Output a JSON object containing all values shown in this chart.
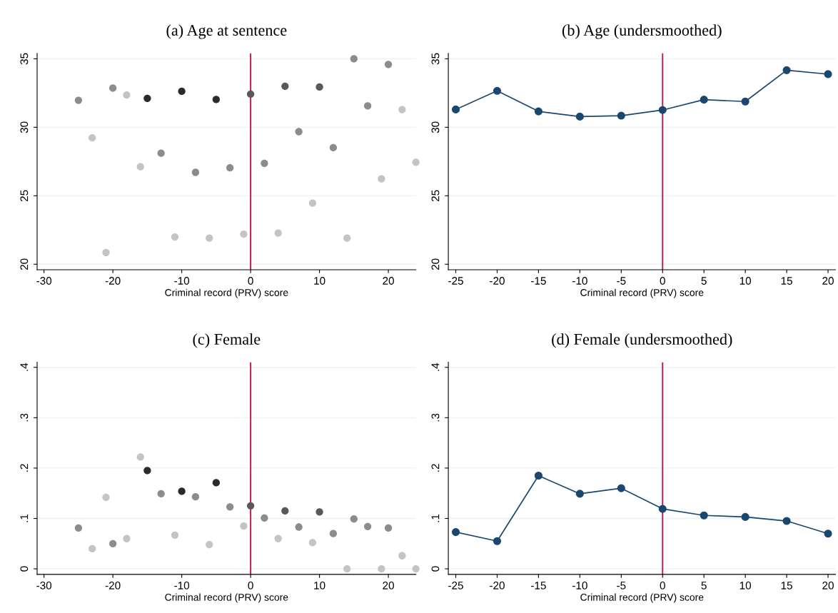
{
  "chart_data": [
    {
      "type": "scatter",
      "title": "(a) Age at sentence",
      "xlabel": "Criminal record (PRV) score",
      "xlim": [
        -31,
        24
      ],
      "xticks": [
        -30,
        -20,
        -10,
        0,
        10,
        20
      ],
      "ylim": [
        19.6,
        35.4
      ],
      "yticks": [
        20,
        25,
        30,
        35
      ],
      "grid": "y",
      "marker": "circle",
      "x": [
        -25,
        -23,
        -21,
        -20,
        -18,
        -16,
        -15,
        -13,
        -11,
        -10,
        -8,
        -6,
        -5,
        -3,
        -1,
        0,
        2,
        4,
        5,
        7,
        9,
        10,
        12,
        14,
        15,
        17,
        19,
        20,
        22,
        24
      ],
      "series": [
        {
          "values": [
            31.97,
            29.23,
            20.86,
            32.86,
            32.36,
            27.12,
            32.11,
            28.11,
            21.99,
            32.63,
            26.71,
            21.91,
            32.03,
            27.04,
            22.2,
            32.42,
            27.37,
            22.28,
            33.0,
            29.68,
            24.46,
            32.94,
            28.51,
            21.91,
            35.0,
            31.56,
            26.24,
            34.59,
            31.29,
            27.45
          ],
          "colors": [
            "#8c8c8c",
            "#c4c4c4",
            "#c4c4c4",
            "#8c8c8c",
            "#c4c4c4",
            "#c4c4c4",
            "#2b2b2b",
            "#8c8c8c",
            "#c4c4c4",
            "#2b2b2b",
            "#8c8c8c",
            "#c4c4c4",
            "#2b2b2b",
            "#8c8c8c",
            "#c4c4c4",
            "#595959",
            "#8c8c8c",
            "#c4c4c4",
            "#595959",
            "#8c8c8c",
            "#c4c4c4",
            "#595959",
            "#8c8c8c",
            "#c4c4c4",
            "#8c8c8c",
            "#8c8c8c",
            "#c4c4c4",
            "#8c8c8c",
            "#c4c4c4",
            "#c4c4c4"
          ]
        }
      ],
      "ref_lines": [
        {
          "axis": "x",
          "value": 0,
          "color": "#c8174a"
        }
      ]
    },
    {
      "type": "line",
      "title": "(b) Age (undersmoothed)",
      "xlabel": "Criminal record (PRV) score",
      "xlim": [
        -25.9,
        20.9
      ],
      "xticks": [
        -25,
        -20,
        -15,
        -10,
        -5,
        0,
        5,
        10,
        15,
        20
      ],
      "ylim": [
        19.6,
        35.4
      ],
      "yticks": [
        20,
        25,
        30,
        35
      ],
      "grid": "y",
      "marker": "circle",
      "x": [
        -25,
        -20,
        -15,
        -10,
        -5,
        0,
        5,
        10,
        15,
        20
      ],
      "series": [
        {
          "color": "#1a476f",
          "values": [
            31.3,
            32.66,
            31.16,
            30.78,
            30.85,
            31.26,
            32.02,
            31.88,
            34.17,
            33.88
          ]
        }
      ],
      "ref_lines": [
        {
          "axis": "x",
          "value": 0,
          "color": "#c8174a"
        }
      ]
    },
    {
      "type": "scatter",
      "title": "(c) Female",
      "xlabel": "Criminal record (PRV) score",
      "xlim": [
        -31,
        24
      ],
      "xticks": [
        -30,
        -20,
        -10,
        0,
        10,
        20
      ],
      "ylim": [
        -0.011,
        0.41
      ],
      "yticks": [
        0,
        {
          "value": 0.1,
          "label": ".1"
        },
        {
          "value": 0.2,
          "label": ".2"
        },
        {
          "value": 0.3,
          "label": ".3"
        },
        {
          "value": 0.4,
          "label": ".4"
        }
      ],
      "grid": "y",
      "marker": "circle",
      "x": [
        -25,
        -23,
        -21,
        -20,
        -18,
        -16,
        -15,
        -13,
        -11,
        -10,
        -8,
        -6,
        -5,
        -3,
        -1,
        0,
        2,
        4,
        5,
        7,
        9,
        10,
        12,
        14,
        15,
        17,
        19,
        20,
        22,
        24
      ],
      "series": [
        {
          "values": [
            0.081,
            0.04,
            0.142,
            0.05,
            0.06,
            0.222,
            0.195,
            0.149,
            0.067,
            0.154,
            0.143,
            0.048,
            0.171,
            0.123,
            0.085,
            0.125,
            0.101,
            0.06,
            0.115,
            0.083,
            0.052,
            0.113,
            0.07,
            0.0,
            0.099,
            0.084,
            0.0,
            0.081,
            0.026,
            0.0
          ],
          "colors": [
            "#8c8c8c",
            "#c4c4c4",
            "#c4c4c4",
            "#8c8c8c",
            "#c4c4c4",
            "#c4c4c4",
            "#2b2b2b",
            "#8c8c8c",
            "#c4c4c4",
            "#2b2b2b",
            "#8c8c8c",
            "#c4c4c4",
            "#2b2b2b",
            "#8c8c8c",
            "#c4c4c4",
            "#595959",
            "#8c8c8c",
            "#c4c4c4",
            "#595959",
            "#8c8c8c",
            "#c4c4c4",
            "#595959",
            "#8c8c8c",
            "#c4c4c4",
            "#8c8c8c",
            "#8c8c8c",
            "#c4c4c4",
            "#8c8c8c",
            "#c4c4c4",
            "#c4c4c4"
          ]
        }
      ],
      "ref_lines": [
        {
          "axis": "x",
          "value": 0,
          "color": "#c8174a"
        }
      ]
    },
    {
      "type": "line",
      "title": "(d) Female (undersmoothed)",
      "xlabel": "Criminal record (PRV) score",
      "xlim": [
        -25.9,
        20.9
      ],
      "xticks": [
        -25,
        -20,
        -15,
        -10,
        -5,
        0,
        5,
        10,
        15,
        20
      ],
      "ylim": [
        -0.011,
        0.41
      ],
      "yticks": [
        0,
        {
          "value": 0.1,
          "label": ".1"
        },
        {
          "value": 0.2,
          "label": ".2"
        },
        {
          "value": 0.3,
          "label": ".3"
        },
        {
          "value": 0.4,
          "label": ".4"
        }
      ],
      "grid": "y",
      "marker": "circle",
      "x": [
        -25,
        -20,
        -15,
        -10,
        -5,
        0,
        5,
        10,
        15,
        20
      ],
      "series": [
        {
          "color": "#1a476f",
          "values": [
            0.073,
            0.055,
            0.185,
            0.149,
            0.16,
            0.119,
            0.106,
            0.103,
            0.095,
            0.07
          ]
        }
      ],
      "ref_lines": [
        {
          "axis": "x",
          "value": 0,
          "color": "#c8174a"
        }
      ]
    }
  ]
}
